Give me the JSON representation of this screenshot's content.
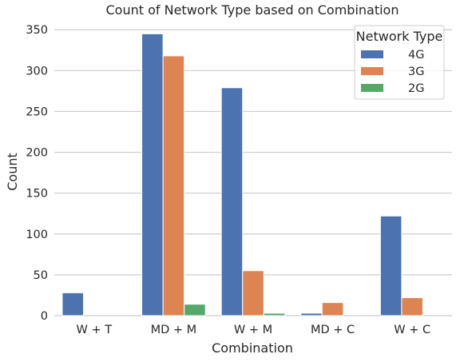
{
  "chart_data": {
    "type": "bar",
    "title": "Count of Network Type based on Combination",
    "xlabel": "Combination",
    "ylabel": "Count",
    "categories": [
      "W + T",
      "MD + M",
      "W + M",
      "MD + C",
      "W + C"
    ],
    "series": [
      {
        "name": "4G",
        "color": "#4c72b0",
        "values": [
          28,
          345,
          279,
          3,
          122
        ]
      },
      {
        "name": "3G",
        "color": "#dd8452",
        "values": [
          0,
          318,
          55,
          16,
          22
        ]
      },
      {
        "name": "2G",
        "color": "#55a868",
        "values": [
          0,
          14,
          3,
          0,
          0
        ]
      }
    ],
    "ylim": [
      0,
      360
    ],
    "yticks": [
      0,
      50,
      100,
      150,
      200,
      250,
      300,
      350
    ],
    "grid": true,
    "legend": {
      "title": "Network Type",
      "placement": "top-right"
    }
  }
}
